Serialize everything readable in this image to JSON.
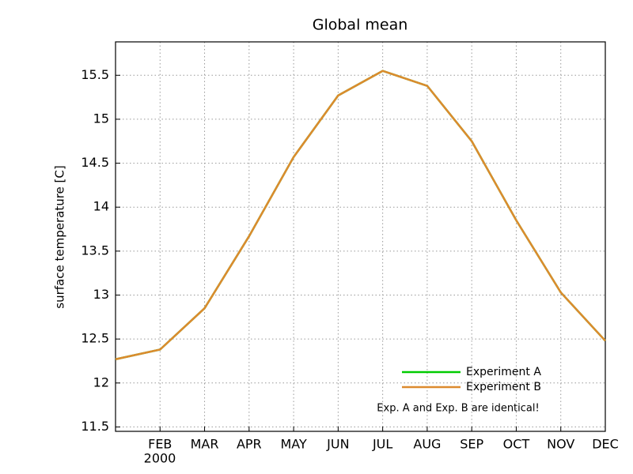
{
  "chart_data": {
    "type": "line",
    "title": "Global mean",
    "y_label": "surface temperature [C]",
    "categories": [
      null,
      "FEB",
      "MAR",
      "APR",
      "MAY",
      "JUN",
      "JUL",
      "AUG",
      "SEP",
      "OCT",
      "NOV",
      "DEC"
    ],
    "x_sublabel": "2000",
    "series": [
      {
        "name": "Experiment A",
        "color": "#00cc00",
        "values": [
          12.27,
          12.38,
          12.85,
          13.67,
          14.57,
          15.27,
          15.55,
          15.38,
          14.75,
          13.85,
          13.03,
          12.48
        ]
      },
      {
        "name": "Experiment B",
        "color": "#dd8a2e",
        "values": [
          12.27,
          12.38,
          12.85,
          13.67,
          14.57,
          15.27,
          15.55,
          15.38,
          14.75,
          13.85,
          13.03,
          12.48
        ]
      }
    ],
    "annotation": "Exp. A and Exp. B are identical!",
    "ylim": [
      11.45,
      15.88
    ],
    "yticks": [
      11.5,
      12,
      12.5,
      13,
      13.5,
      14,
      14.5,
      15,
      15.5
    ],
    "grid": true
  }
}
